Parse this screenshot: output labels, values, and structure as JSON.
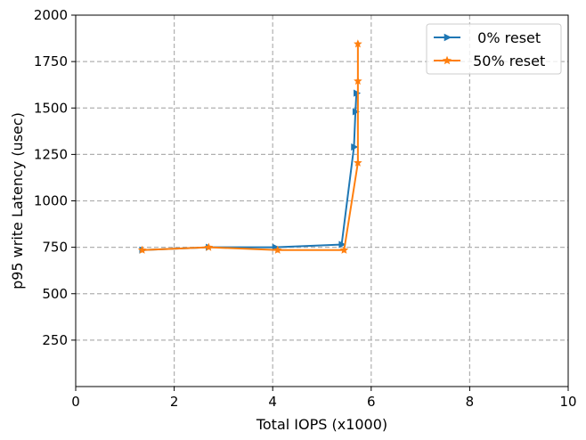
{
  "chart_data": {
    "type": "line",
    "xlabel": "Total IOPS (x1000)",
    "ylabel": "p95 write Latency (usec)",
    "xlim": [
      0,
      10
    ],
    "ylim": [
      0,
      2000
    ],
    "xticks": [
      0,
      2,
      4,
      6,
      8,
      10
    ],
    "yticks": [
      250,
      500,
      750,
      1000,
      1250,
      1500,
      1750,
      2000
    ],
    "xtick_labels": [
      "0",
      "2",
      "4",
      "6",
      "8",
      "10"
    ],
    "ytick_labels": [
      "250",
      "500",
      "750",
      "1000",
      "1250",
      "1500",
      "1750",
      "2000"
    ],
    "grid": true,
    "legend_position": "top-right",
    "series": [
      {
        "name": "  0% reset",
        "color": "#1f77b4",
        "marker": "triangle-right",
        "x": [
          1.35,
          2.7,
          4.05,
          5.4,
          5.65,
          5.68,
          5.7
        ],
        "y": [
          735,
          750,
          750,
          765,
          1290,
          1480,
          1580
        ]
      },
      {
        "name": " 50% reset",
        "color": "#ff7f0e",
        "marker": "star",
        "x": [
          1.35,
          2.7,
          4.1,
          5.45,
          5.73,
          5.73,
          5.73
        ],
        "y": [
          735,
          750,
          735,
          735,
          1205,
          1645,
          1845
        ]
      }
    ]
  }
}
